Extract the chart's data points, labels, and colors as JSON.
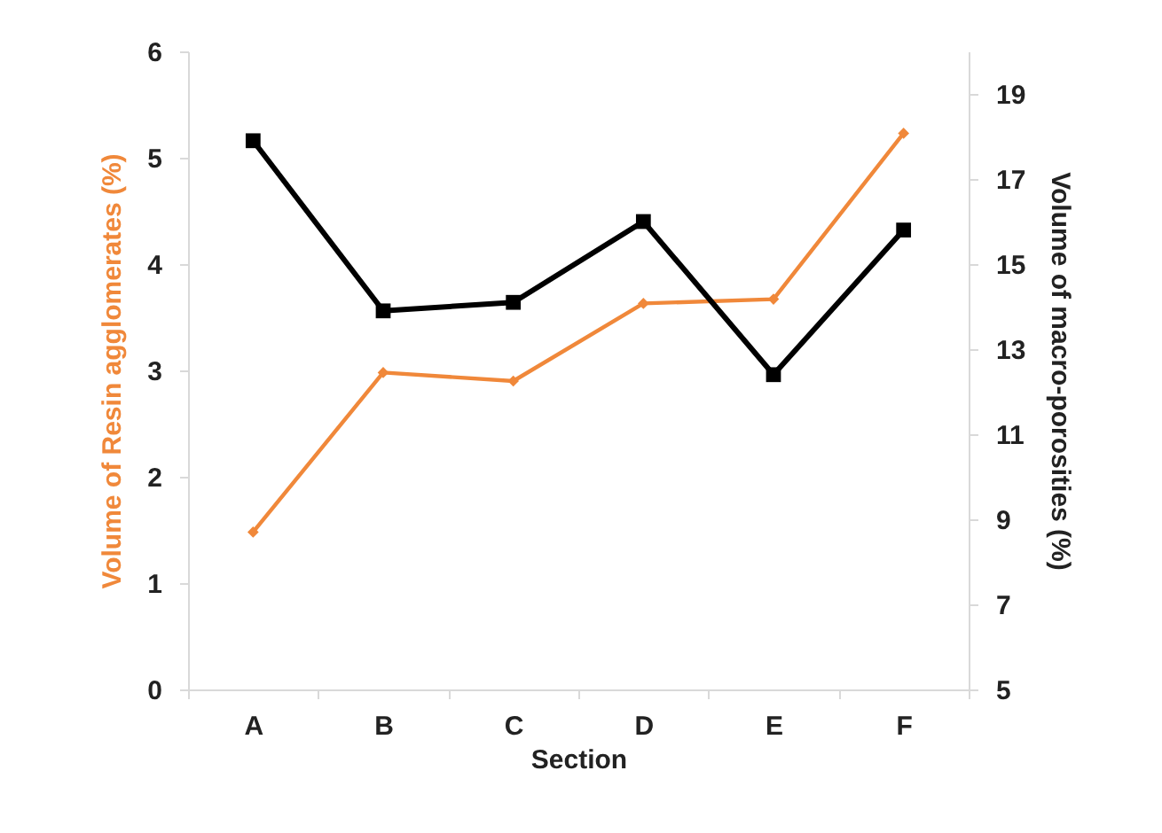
{
  "chart_data": {
    "type": "line",
    "xlabel": "Section",
    "ylabel": "Volume of Resin agglomerates (%)",
    "y2label": "Volume of macro-porosities (%)",
    "categories": [
      "A",
      "B",
      "C",
      "D",
      "E",
      "F"
    ],
    "series": [
      {
        "color": "#f0883a",
        "marker": "diamond",
        "values": [
          1.48,
          2.98,
          2.9,
          3.63,
          3.67,
          5.23
        ]
      },
      {
        "color": "#000000",
        "marker": "square",
        "axis": "y2",
        "values": [
          17.9,
          13.9,
          14.1,
          16.0,
          12.4,
          15.8
        ]
      }
    ],
    "ylim": [
      0,
      6
    ],
    "yticks": [
      0,
      1,
      2,
      3,
      4,
      5,
      6
    ],
    "y2lim": [
      5,
      20
    ],
    "y2ticks": [
      5,
      7,
      9,
      11,
      13,
      15,
      17,
      19
    ],
    "grid": false
  }
}
